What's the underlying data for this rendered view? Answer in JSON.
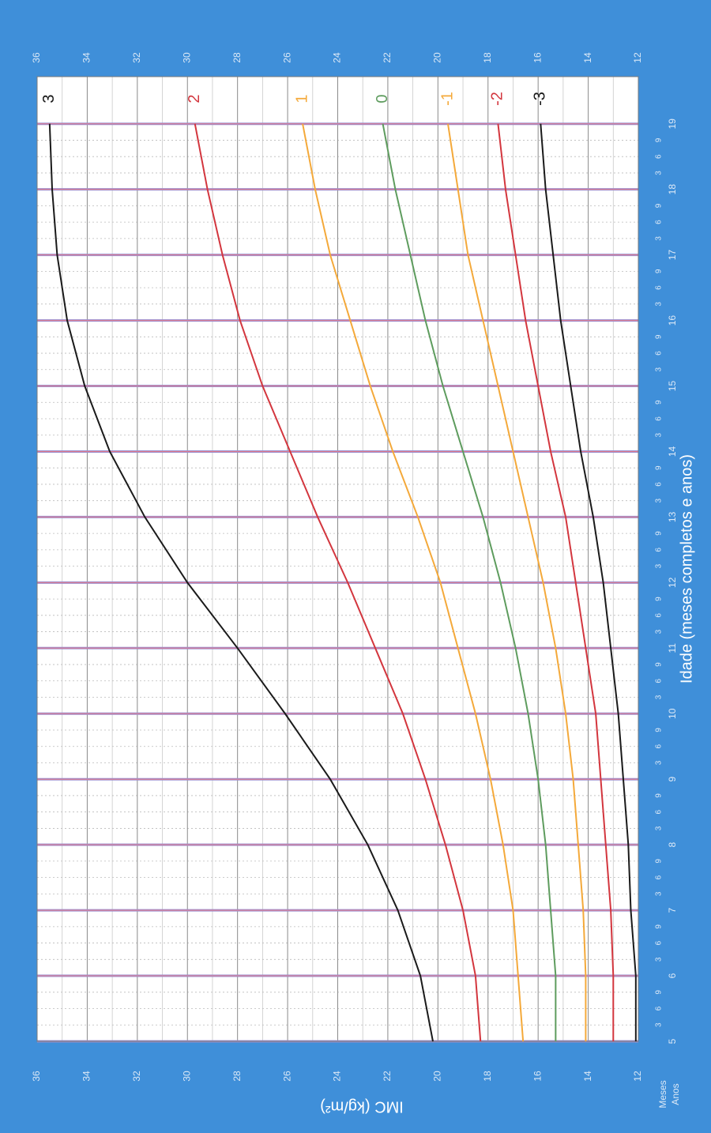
{
  "chart_data": {
    "type": "line",
    "x_title": "Idade (meses completos e anos)",
    "y_title": "IMC (kg/m²)",
    "row_labels": [
      "Meses",
      "Anos"
    ],
    "month_labels": [
      3,
      6,
      9
    ],
    "x": [
      5,
      6,
      7,
      8,
      9,
      10,
      11,
      12,
      13,
      14,
      15,
      16,
      17,
      18,
      19
    ],
    "xticks": [
      5,
      6,
      7,
      8,
      9,
      10,
      11,
      12,
      13,
      14,
      15,
      16,
      17,
      18,
      19
    ],
    "xlim": [
      5,
      19.72
    ],
    "ylim": [
      12,
      36
    ],
    "yticks": [
      12,
      14,
      16,
      18,
      20,
      22,
      24,
      26,
      28,
      30,
      32,
      34,
      36
    ],
    "grid": true,
    "series": [
      {
        "name": "3",
        "color": "#1a1a1a",
        "values": [
          20.2,
          20.7,
          21.6,
          22.8,
          24.3,
          26.1,
          28.0,
          30.0,
          31.7,
          33.1,
          34.1,
          34.8,
          35.2,
          35.4,
          35.5
        ]
      },
      {
        "name": "2",
        "color": "#d3363e",
        "values": [
          18.3,
          18.5,
          19.0,
          19.7,
          20.5,
          21.4,
          22.5,
          23.6,
          24.8,
          25.9,
          27.0,
          27.9,
          28.6,
          29.2,
          29.7
        ]
      },
      {
        "name": "1",
        "color": "#f4a93a",
        "values": [
          16.6,
          16.8,
          17.0,
          17.4,
          17.9,
          18.5,
          19.2,
          19.9,
          20.8,
          21.8,
          22.7,
          23.5,
          24.3,
          24.9,
          25.4
        ]
      },
      {
        "name": "0",
        "color": "#5e9c5e",
        "values": [
          15.3,
          15.3,
          15.5,
          15.7,
          16.0,
          16.4,
          16.9,
          17.5,
          18.2,
          19.0,
          19.8,
          20.5,
          21.1,
          21.7,
          22.2
        ]
      },
      {
        "name": "-1",
        "color": "#f4a93a",
        "values": [
          14.1,
          14.1,
          14.2,
          14.4,
          14.6,
          14.9,
          15.3,
          15.8,
          16.4,
          17.0,
          17.6,
          18.2,
          18.8,
          19.2,
          19.6
        ]
      },
      {
        "name": "-2",
        "color": "#d3363e",
        "values": [
          13.0,
          13.0,
          13.1,
          13.3,
          13.5,
          13.7,
          14.1,
          14.5,
          14.9,
          15.5,
          16.0,
          16.5,
          16.9,
          17.3,
          17.6
        ]
      },
      {
        "name": "-3",
        "color": "#1a1a1a",
        "values": [
          12.1,
          12.1,
          12.3,
          12.4,
          12.6,
          12.8,
          13.1,
          13.4,
          13.8,
          14.3,
          14.7,
          15.1,
          15.4,
          15.7,
          15.9
        ]
      }
    ]
  }
}
